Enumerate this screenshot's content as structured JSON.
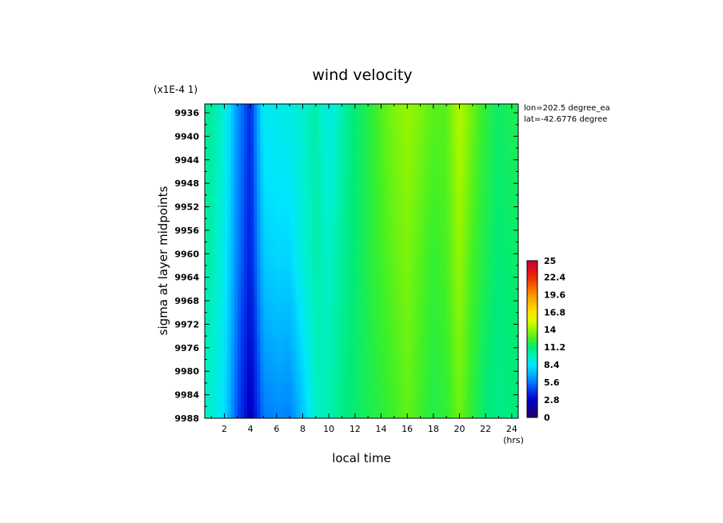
{
  "chart_data": {
    "type": "heatmap",
    "title": "wind velocity",
    "y_scale_note": "(x1E-4 1)",
    "xlabel": "local time",
    "x_unit": "(hrs)",
    "ylabel": "sigma at layer midpoints",
    "annotations": [
      "lon=202.5 degree_ea",
      "lat=-42.6776 degree"
    ],
    "x_range": [
      0.5,
      24.5
    ],
    "x_ticks": [
      2,
      4,
      6,
      8,
      10,
      12,
      14,
      16,
      18,
      20,
      22,
      24
    ],
    "y_range": [
      9934.5,
      9988
    ],
    "y_ticks": [
      9936,
      9940,
      9944,
      9948,
      9952,
      9956,
      9960,
      9964,
      9968,
      9972,
      9976,
      9980,
      9984,
      9988
    ],
    "colorbar": {
      "min": 0,
      "max": 25,
      "tick_labels": [
        "25",
        "22.4",
        "19.6",
        "16.8",
        "14",
        "11.2",
        "8.4",
        "5.6",
        "2.8",
        "0"
      ]
    },
    "hours": [
      1,
      2,
      3,
      4,
      5,
      6,
      7,
      8,
      9,
      10,
      11,
      12,
      13,
      14,
      15,
      16,
      17,
      18,
      19,
      20,
      21,
      22,
      23,
      24
    ],
    "sigma_levels": [
      9936,
      9961,
      9988
    ],
    "values": [
      [
        10.6,
        9.4,
        6.2,
        4.0,
        8.8,
        8.9,
        9.1,
        9.6,
        10.4,
        9.0,
        10.3,
        11.3,
        12.0,
        12.9,
        13.6,
        14.0,
        13.6,
        13.0,
        13.0,
        14.6,
        13.3,
        12.2,
        11.5,
        11.8
      ],
      [
        10.3,
        8.9,
        5.8,
        3.6,
        7.6,
        8.0,
        7.9,
        9.4,
        10.3,
        9.8,
        10.6,
        11.3,
        12.0,
        12.6,
        13.2,
        13.6,
        13.0,
        12.4,
        12.8,
        14.0,
        12.7,
        11.8,
        11.2,
        11.4
      ],
      [
        9.6,
        8.2,
        4.8,
        2.4,
        5.6,
        6.0,
        5.8,
        7.4,
        9.8,
        10.2,
        10.9,
        11.4,
        11.8,
        12.2,
        12.6,
        13.2,
        12.6,
        12.0,
        12.3,
        13.4,
        12.2,
        11.2,
        10.9,
        11.1
      ]
    ]
  }
}
